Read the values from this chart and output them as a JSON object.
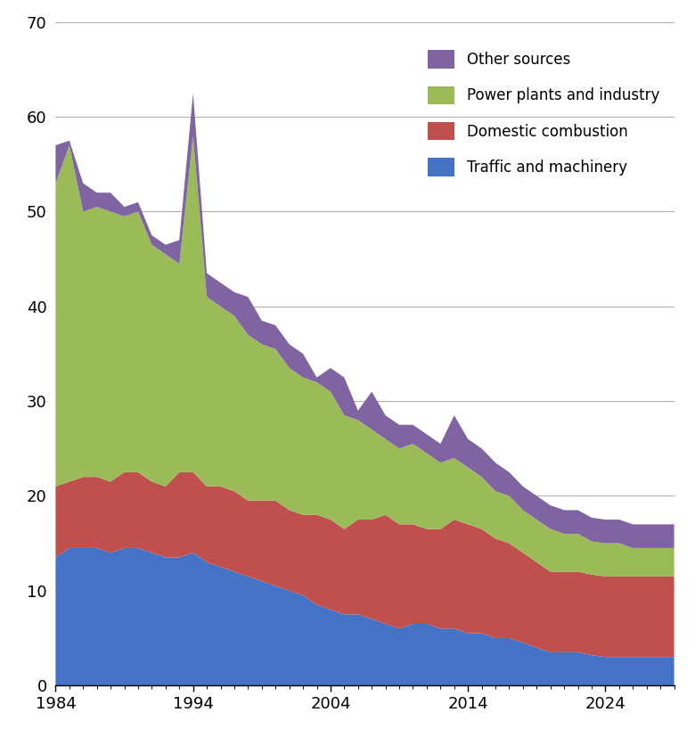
{
  "years": [
    1984,
    1985,
    1986,
    1987,
    1988,
    1989,
    1990,
    1991,
    1992,
    1993,
    1994,
    1995,
    1996,
    1997,
    1998,
    1999,
    2000,
    2001,
    2002,
    2003,
    2004,
    2005,
    2006,
    2007,
    2008,
    2009,
    2010,
    2011,
    2012,
    2013,
    2014,
    2015,
    2016,
    2017,
    2018,
    2019,
    2020,
    2021,
    2022,
    2023,
    2024,
    2025,
    2026,
    2027,
    2028,
    2029
  ],
  "traffic": [
    13.5,
    14.5,
    14.5,
    14.5,
    14.0,
    14.5,
    14.5,
    14.0,
    13.5,
    13.5,
    14.0,
    13.0,
    12.5,
    12.0,
    11.5,
    11.0,
    10.5,
    10.0,
    9.5,
    8.5,
    8.0,
    7.5,
    7.5,
    7.0,
    6.5,
    6.0,
    6.5,
    6.5,
    6.0,
    6.0,
    5.5,
    5.5,
    5.0,
    5.0,
    4.5,
    4.0,
    3.5,
    3.5,
    3.5,
    3.2,
    3.0,
    3.0,
    3.0,
    3.0,
    3.0,
    3.0
  ],
  "domestic": [
    7.5,
    7.0,
    7.5,
    7.5,
    7.5,
    8.0,
    8.0,
    7.5,
    7.5,
    9.0,
    8.5,
    8.0,
    8.5,
    8.5,
    8.0,
    8.5,
    9.0,
    8.5,
    8.5,
    9.5,
    9.5,
    9.0,
    10.0,
    10.5,
    11.5,
    11.0,
    10.5,
    10.0,
    10.5,
    11.5,
    11.5,
    11.0,
    10.5,
    10.0,
    9.5,
    9.0,
    8.5,
    8.5,
    8.5,
    8.5,
    8.5,
    8.5,
    8.5,
    8.5,
    8.5,
    8.5
  ],
  "power_industry": [
    32.0,
    35.5,
    28.0,
    28.5,
    28.5,
    27.0,
    27.5,
    25.0,
    24.5,
    22.0,
    35.5,
    20.0,
    19.0,
    18.5,
    17.5,
    16.5,
    16.0,
    15.0,
    14.5,
    14.0,
    13.5,
    12.0,
    10.5,
    9.5,
    8.0,
    8.0,
    8.5,
    8.0,
    7.0,
    6.5,
    6.0,
    5.5,
    5.0,
    5.0,
    4.5,
    4.5,
    4.5,
    4.0,
    4.0,
    3.5,
    3.5,
    3.5,
    3.0,
    3.0,
    3.0,
    3.0
  ],
  "other": [
    4.0,
    0.5,
    3.0,
    1.5,
    2.0,
    1.0,
    1.0,
    1.0,
    1.0,
    2.5,
    4.5,
    2.5,
    2.5,
    2.5,
    4.0,
    2.5,
    2.5,
    2.5,
    2.5,
    0.5,
    2.5,
    4.0,
    1.0,
    4.0,
    2.5,
    2.5,
    2.0,
    2.0,
    2.0,
    4.5,
    3.0,
    3.0,
    3.0,
    2.5,
    2.5,
    2.5,
    2.5,
    2.5,
    2.5,
    2.5,
    2.5,
    2.5,
    2.5,
    2.5,
    2.5,
    2.5
  ],
  "colors": {
    "traffic": "#4472C4",
    "domestic": "#C0504D",
    "power_industry": "#9BBB59",
    "other": "#8064A2"
  },
  "legend_labels": [
    "Other sources",
    "Power plants and industry",
    "Domestic combustion",
    "Traffic and machinery"
  ],
  "ylim": [
    0,
    70
  ],
  "yticks": [
    0,
    10,
    20,
    30,
    40,
    50,
    60,
    70
  ],
  "xticks": [
    1984,
    1994,
    2004,
    2014,
    2024
  ],
  "background_color": "#ffffff",
  "grid_color": "#b0b0b0"
}
